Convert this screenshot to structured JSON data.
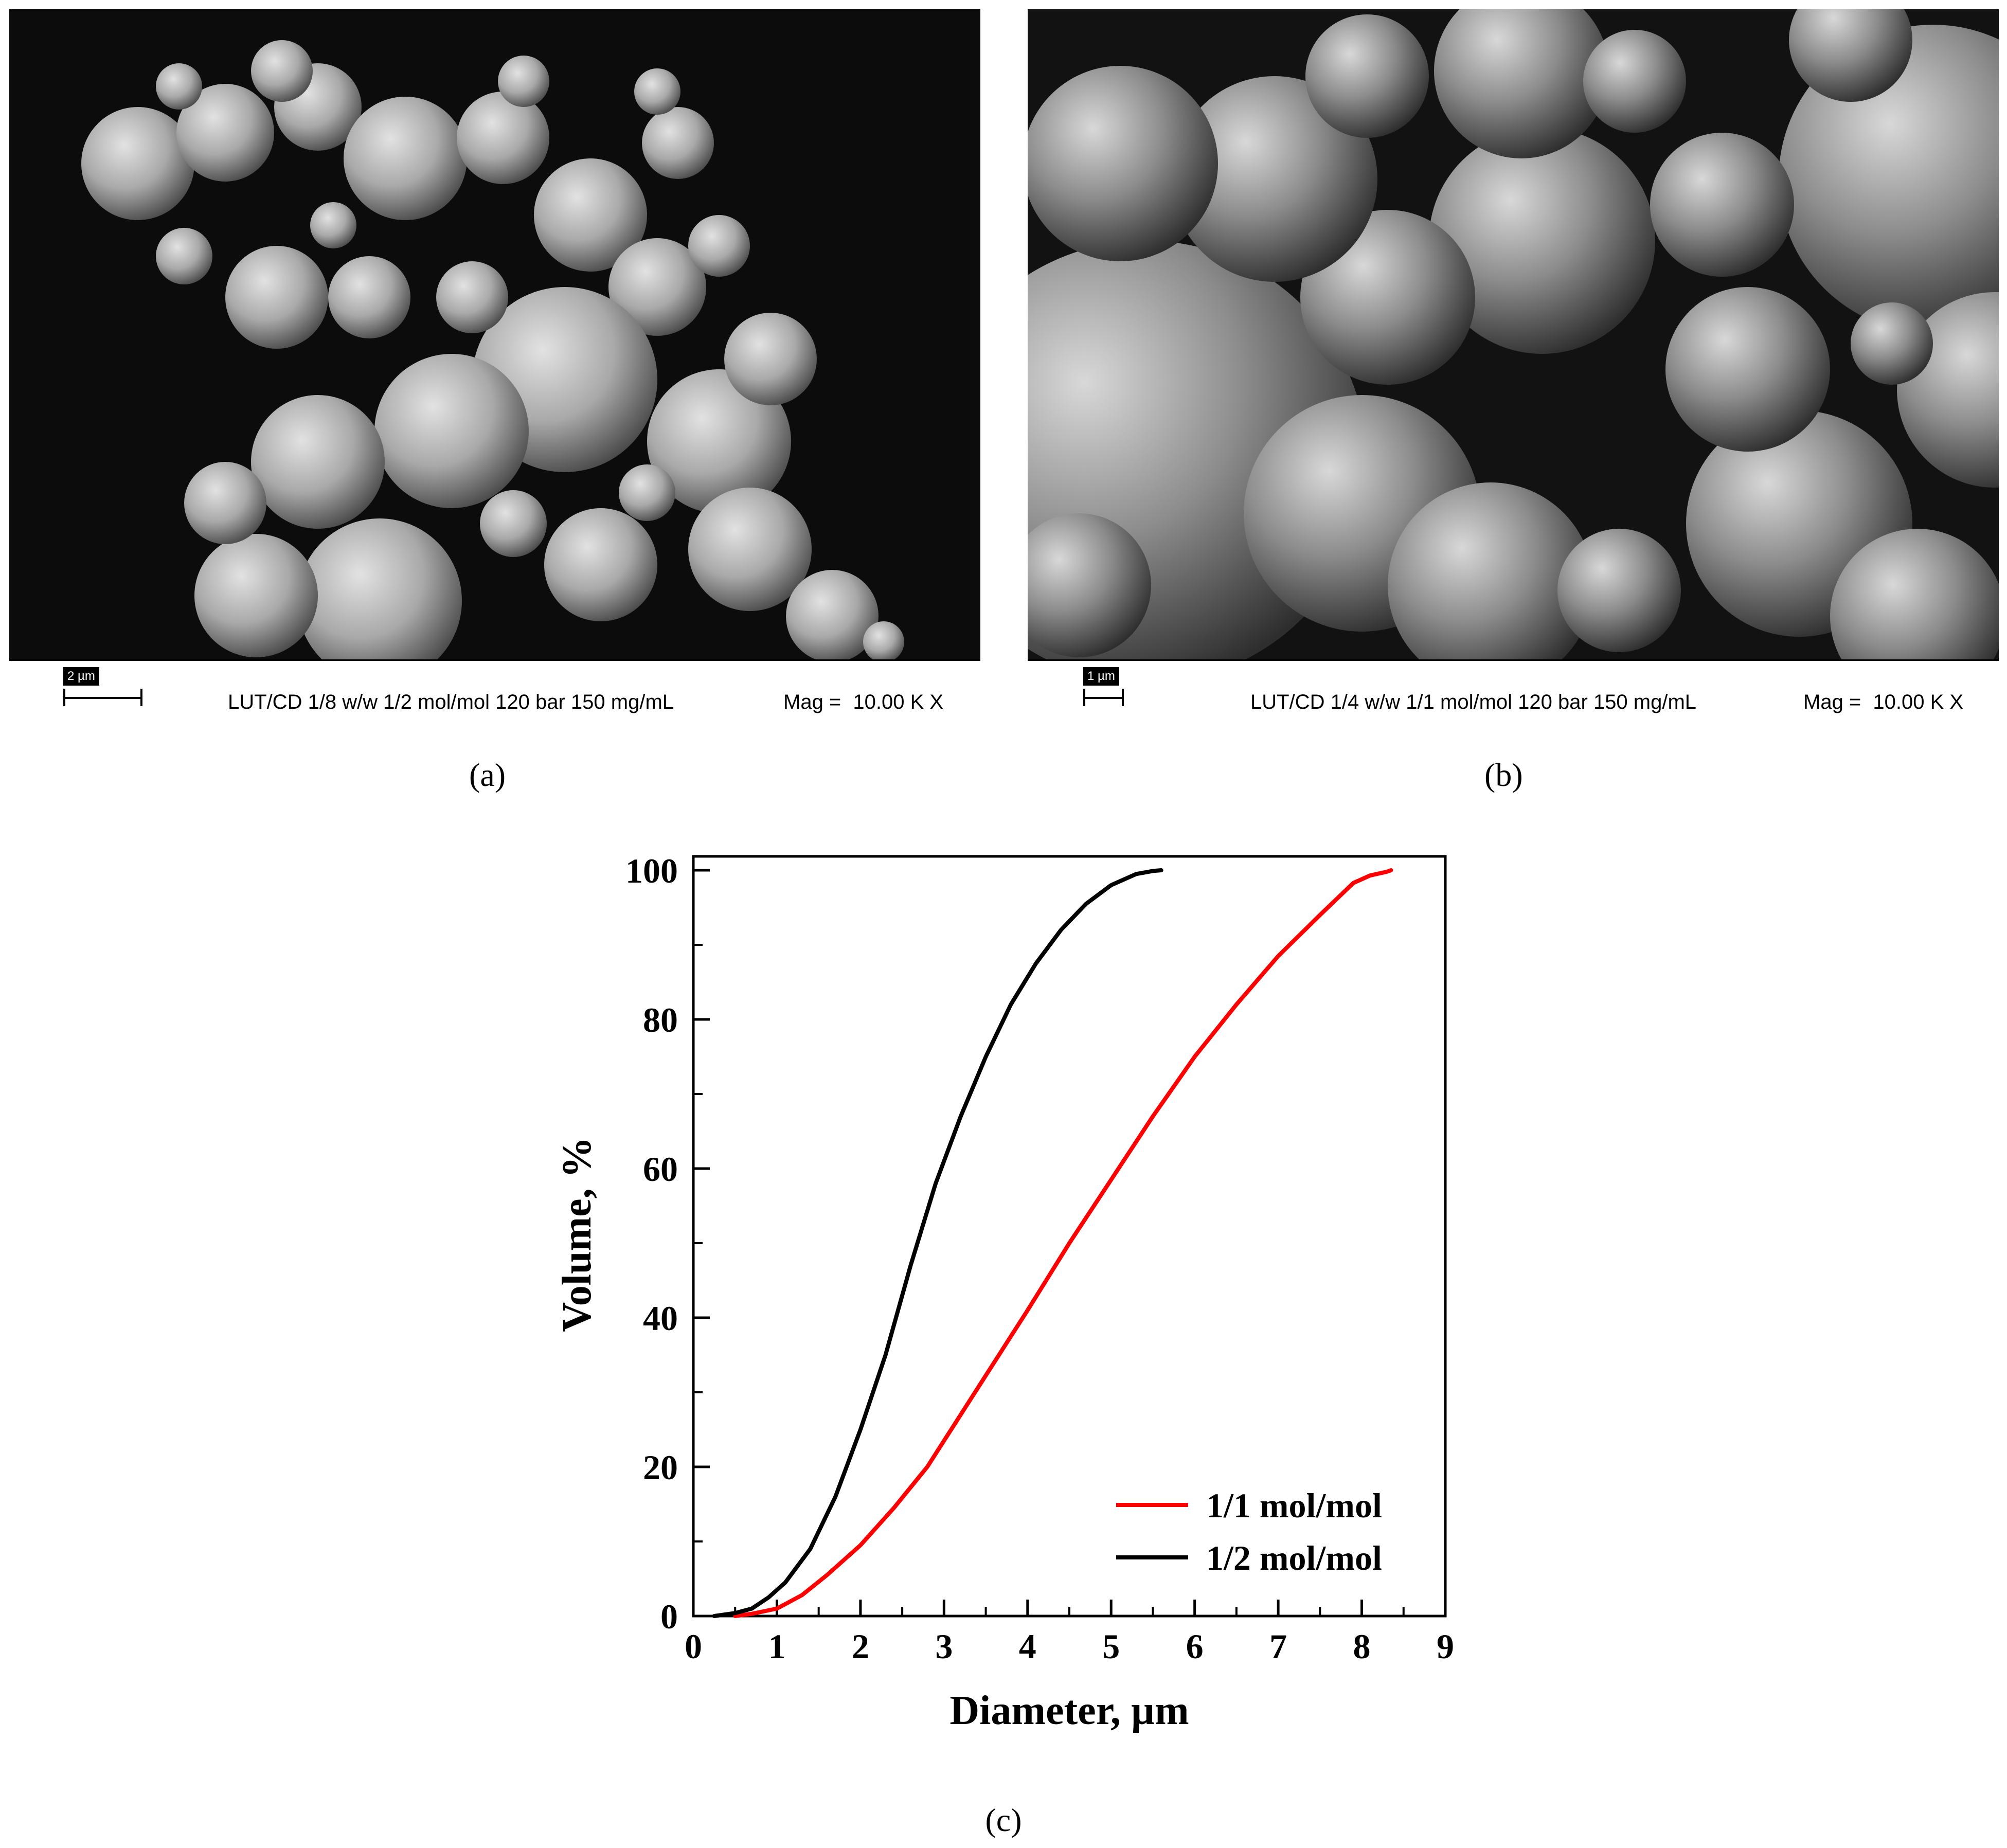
{
  "panel_a": {
    "label": "(a)",
    "scale_text": "2 µm",
    "description": "LUT/CD 1/8 w/w 1/2 mol/mol 120 bar 150 mg/mL",
    "mag_label": "Mag =",
    "mag_value": "10.00 K X"
  },
  "panel_b": {
    "label": "(b)",
    "scale_text": "1 µm",
    "description": "LUT/CD 1/4 w/w 1/1 mol/mol 120 bar 150 mg/mL",
    "mag_label": "Mag =",
    "mag_value": "10.00 K X"
  },
  "panel_c": {
    "label": "(c)"
  },
  "chart_data": {
    "type": "line",
    "xlabel": "Diameter, µm",
    "ylabel": "Volume, %",
    "xlim": [
      0,
      9
    ],
    "ylim": [
      0,
      100
    ],
    "xticks": [
      0,
      1,
      2,
      3,
      4,
      5,
      6,
      7,
      8,
      9
    ],
    "yticks": [
      0,
      20,
      40,
      60,
      80,
      100
    ],
    "legend_position": "bottom-right",
    "grid": false,
    "series": [
      {
        "name": "1/1 mol/mol",
        "color": "#ff0000",
        "x": [
          0.5,
          0.7,
          1.0,
          1.3,
          1.6,
          2.0,
          2.4,
          2.8,
          3.2,
          3.6,
          4.0,
          4.5,
          5.0,
          5.5,
          6.0,
          6.5,
          7.0,
          7.5,
          7.9,
          8.1,
          8.3,
          8.35
        ],
        "y": [
          0,
          0.3,
          1,
          2.8,
          5.5,
          9.5,
          14.5,
          20,
          27,
          34,
          41,
          50,
          58.5,
          67,
          75,
          82,
          88.5,
          94,
          98.3,
          99.3,
          99.8,
          100
        ]
      },
      {
        "name": "1/2 mol/mol",
        "color": "#000000",
        "x": [
          0.25,
          0.5,
          0.7,
          0.9,
          1.1,
          1.4,
          1.7,
          2.0,
          2.3,
          2.6,
          2.9,
          3.2,
          3.5,
          3.8,
          4.1,
          4.4,
          4.7,
          5.0,
          5.3,
          5.5,
          5.6
        ],
        "y": [
          0,
          0.4,
          1,
          2.5,
          4.5,
          9,
          16,
          25,
          35,
          47,
          58,
          67,
          75,
          82,
          87.5,
          92,
          95.5,
          98,
          99.5,
          99.9,
          100
        ]
      }
    ]
  }
}
